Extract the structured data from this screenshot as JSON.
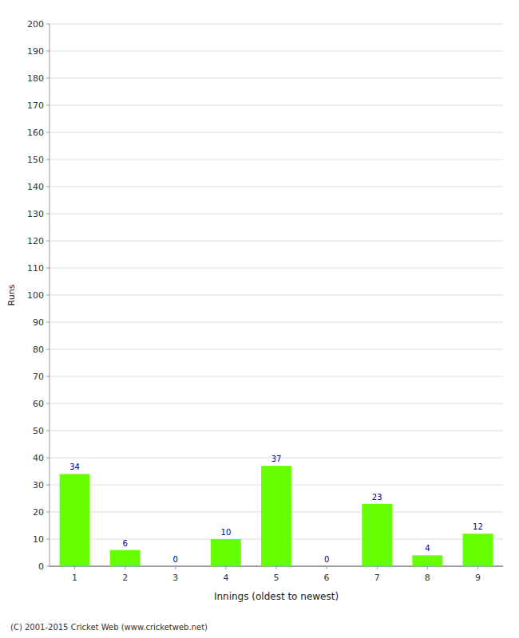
{
  "chart_data": {
    "type": "bar",
    "xlabel": "Innings (oldest to newest)",
    "ylabel": "Runs",
    "categories": [
      "1",
      "2",
      "3",
      "4",
      "5",
      "6",
      "7",
      "8",
      "9"
    ],
    "values": [
      34,
      6,
      0,
      10,
      37,
      0,
      23,
      4,
      12
    ],
    "color": "#66ff00",
    "ylim": [
      0,
      200
    ],
    "yticks": [
      0,
      10,
      20,
      30,
      40,
      50,
      60,
      70,
      80,
      90,
      100,
      110,
      120,
      130,
      140,
      150,
      160,
      170,
      180,
      190,
      200
    ],
    "grid": true,
    "data_labels": true,
    "footer": "(C) 2001-2015 Cricket Web (www.cricketweb.net)"
  }
}
